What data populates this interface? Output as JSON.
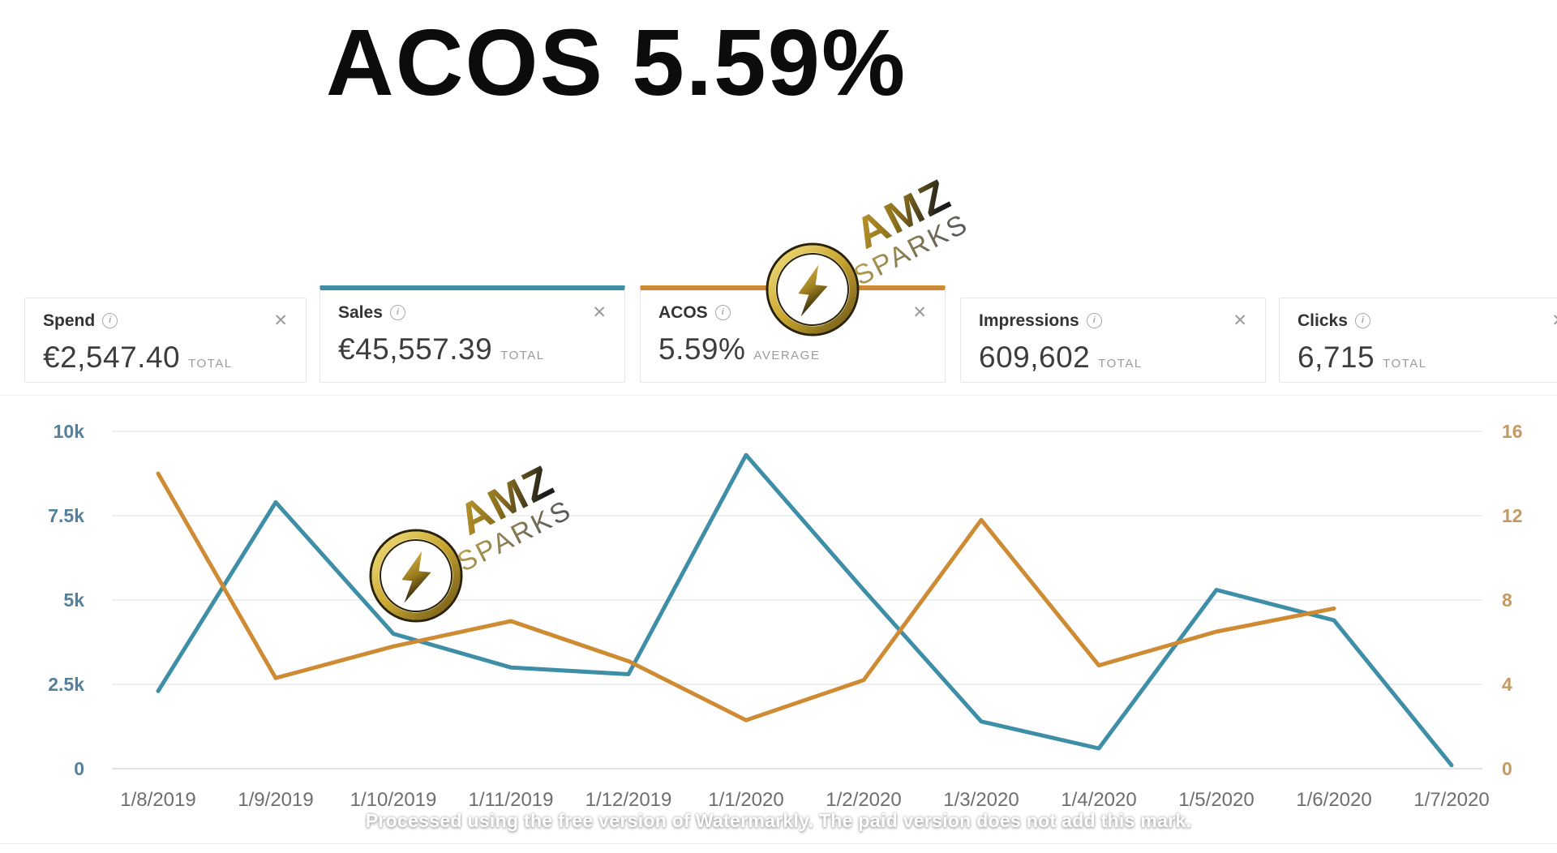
{
  "title": "ACOS 5.59%",
  "icons": {
    "info": "i",
    "close": "✕"
  },
  "cards": [
    {
      "label": "Spend",
      "value": "€2,547.40",
      "unit": "TOTAL",
      "selected": false,
      "accent": ""
    },
    {
      "label": "Sales",
      "value": "€45,557.39",
      "unit": "TOTAL",
      "selected": true,
      "accent": "#3E8EA8"
    },
    {
      "label": "ACOS",
      "value": "5.59%",
      "unit": "AVERAGE",
      "selected": true,
      "accent": "#CE8B33"
    },
    {
      "label": "Impressions",
      "value": "609,602",
      "unit": "TOTAL",
      "selected": false,
      "accent": ""
    },
    {
      "label": "Clicks",
      "value": "6,715",
      "unit": "TOTAL",
      "selected": false,
      "accent": ""
    }
  ],
  "chart_data": {
    "type": "line",
    "title": "",
    "categories": [
      "1/8/2019",
      "1/9/2019",
      "1/10/2019",
      "1/11/2019",
      "1/12/2019",
      "1/1/2020",
      "1/2/2020",
      "1/3/2020",
      "1/4/2020",
      "1/5/2020",
      "1/6/2020",
      "1/7/2020"
    ],
    "series": [
      {
        "name": "Sales",
        "axis": "left",
        "color": "#3E8EA8",
        "values": [
          2300,
          7900,
          4000,
          3000,
          2800,
          9300,
          5300,
          1400,
          600,
          5300,
          4400,
          100
        ]
      },
      {
        "name": "ACOS",
        "axis": "right",
        "color": "#CE8B33",
        "values": [
          14.0,
          4.3,
          5.8,
          7.0,
          5.1,
          2.3,
          4.2,
          11.8,
          4.9,
          6.5,
          7.6,
          null
        ]
      }
    ],
    "left_axis": {
      "ticks": [
        "10k",
        "7.5k",
        "5k",
        "2.5k",
        "0"
      ],
      "min": 0,
      "max": 10000,
      "color": "#54809B"
    },
    "right_axis": {
      "ticks": [
        "16",
        "12",
        "8",
        "4",
        "0"
      ],
      "min": 0,
      "max": 16,
      "color": "#C49A62"
    },
    "x_label_color": "#6e6e6e",
    "grid": true,
    "legend_position": "none"
  },
  "watermark": {
    "logo_text_top": "AMZ",
    "logo_text_bottom": "SPARKS",
    "bolt_icon": "lightning-bolt",
    "footer": "Processed using the free version of Watermarkly. The paid version does not add this mark."
  }
}
